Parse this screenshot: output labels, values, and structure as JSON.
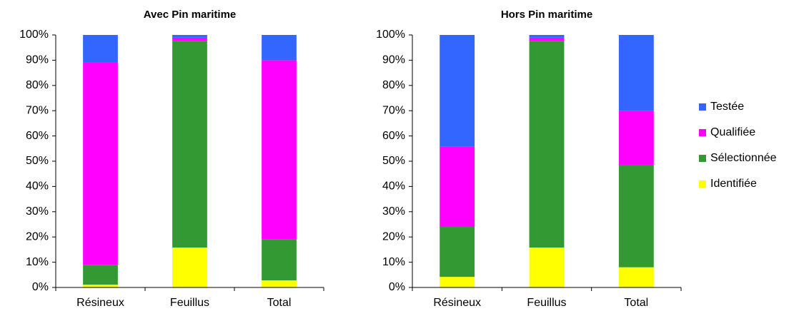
{
  "chart_data": [
    {
      "type": "bar",
      "stacked": true,
      "title": "Avec Pin maritime",
      "categories": [
        "Résineux",
        "Feuillus",
        "Total"
      ],
      "series": [
        {
          "name": "Identifiée",
          "color": "#ffff00",
          "values": [
            1.1,
            15.8,
            2.8
          ]
        },
        {
          "name": "Sélectionnée",
          "color": "#339933",
          "values": [
            7.9,
            81.9,
            16.2
          ]
        },
        {
          "name": "Qualifiée",
          "color": "#ff00ff",
          "values": [
            80,
            1.2,
            71
          ]
        },
        {
          "name": "Testée",
          "color": "#3366ff",
          "values": [
            11,
            1.1,
            10
          ]
        }
      ],
      "ylim": [
        0,
        100
      ],
      "yticks": [
        {
          "value": 0,
          "label": "0%"
        },
        {
          "value": 10,
          "label": "10%"
        },
        {
          "value": 20,
          "label": "20%"
        },
        {
          "value": 30,
          "label": "30%"
        },
        {
          "value": 40,
          "label": "40%"
        },
        {
          "value": 50,
          "label": "50%"
        },
        {
          "value": 60,
          "label": "60%"
        },
        {
          "value": 70,
          "label": "70%"
        },
        {
          "value": 80,
          "label": "80%"
        },
        {
          "value": 90,
          "label": "90%"
        },
        {
          "value": 100,
          "label": "100%"
        }
      ]
    },
    {
      "type": "bar",
      "stacked": true,
      "title": "Hors Pin maritime",
      "categories": [
        "Résineux",
        "Feuillus",
        "Total"
      ],
      "series": [
        {
          "color": "#ffff00",
          "values": [
            4.2,
            15.8,
            8
          ]
        },
        {
          "color": "#339933",
          "values": [
            19.8,
            81.9,
            40.6
          ]
        },
        {
          "color": "#ff00ff",
          "values": [
            31.7,
            1.2,
            21.4
          ]
        },
        {
          "color": "#3366ff",
          "values": [
            44.3,
            1.1,
            30
          ]
        }
      ],
      "ylim": [
        0,
        100
      ],
      "yticks": [
        {
          "value": 0,
          "label": "0%"
        },
        {
          "value": 10,
          "label": "10%"
        },
        {
          "value": 20,
          "label": "20%"
        },
        {
          "value": 30,
          "label": "30%"
        },
        {
          "value": 40,
          "label": "40%"
        },
        {
          "value": 50,
          "label": "50%"
        },
        {
          "value": 60,
          "label": "60%"
        },
        {
          "value": 70,
          "label": "70%"
        },
        {
          "value": 80,
          "label": "80%"
        },
        {
          "value": 90,
          "label": "90%"
        },
        {
          "value": 100,
          "label": "100%"
        }
      ]
    }
  ]
}
